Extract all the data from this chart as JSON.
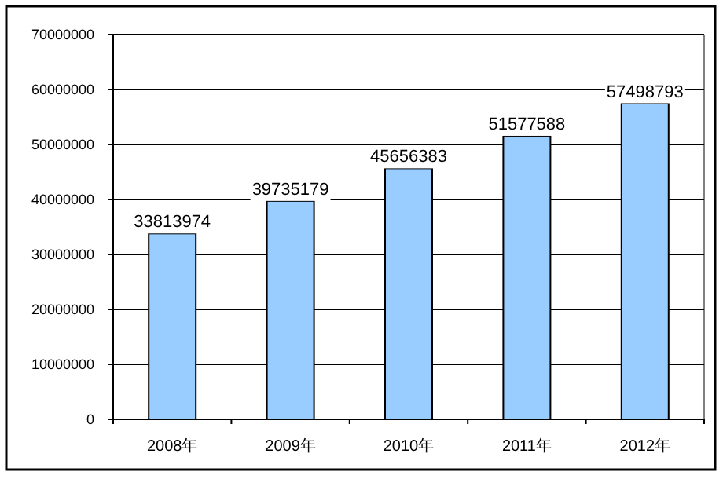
{
  "chart_data": {
    "type": "bar",
    "categories": [
      "2008年",
      "2009年",
      "2010年",
      "2011年",
      "2012年"
    ],
    "values": [
      33813974,
      39735179,
      45656383,
      51577588,
      57498793
    ],
    "color": "#99ccff",
    "ylim": [
      0,
      70000000
    ],
    "yticks": [
      0,
      10000000,
      20000000,
      30000000,
      40000000,
      50000000,
      60000000,
      70000000
    ],
    "grid": "y",
    "data_labels": true
  }
}
